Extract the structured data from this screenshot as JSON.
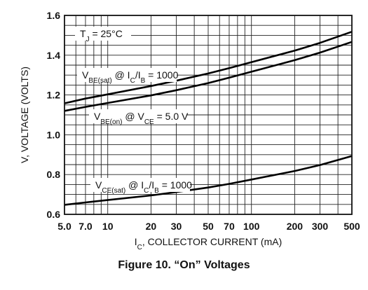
{
  "figure_caption": "Figure 10. “On” Voltages",
  "chart_data": {
    "type": "line",
    "x_scale": "log",
    "xlabel": {
      "main": "I",
      "sub": "C",
      "rest": ", COLLECTOR CURRENT (mA)"
    },
    "ylabel": "V, VOLTAGE (VOLTS)",
    "xlim": [
      5,
      500
    ],
    "ylim": [
      0.6,
      1.6
    ],
    "grid": true,
    "x_ticks": [
      {
        "value": 5,
        "label": "5.0"
      },
      {
        "value": 7,
        "label": "7.0"
      },
      {
        "value": 10,
        "label": "10"
      },
      {
        "value": 20,
        "label": "20"
      },
      {
        "value": 30,
        "label": "30"
      },
      {
        "value": 50,
        "label": "50"
      },
      {
        "value": 70,
        "label": "70"
      },
      {
        "value": 100,
        "label": "100"
      },
      {
        "value": 200,
        "label": "200"
      },
      {
        "value": 300,
        "label": "300"
      },
      {
        "value": 500,
        "label": "500"
      }
    ],
    "y_ticks": [
      {
        "value": 0.6,
        "label": "0.6"
      },
      {
        "value": 0.8,
        "label": "0.8"
      },
      {
        "value": 1.0,
        "label": "1.0"
      },
      {
        "value": 1.2,
        "label": "1.2"
      },
      {
        "value": 1.4,
        "label": "1.4"
      },
      {
        "value": 1.6,
        "label": "1.6"
      }
    ],
    "annotations": {
      "tj": {
        "main": "T",
        "sub": "J",
        "rest": " = 25°C"
      },
      "vbe_sat": {
        "parts": [
          [
            "V",
            ""
          ],
          [
            "BE(sat)",
            "sub"
          ],
          [
            " @ I",
            ""
          ],
          [
            "C",
            "sub"
          ],
          [
            "/I",
            ""
          ],
          [
            "B",
            "sub"
          ],
          [
            " = 1000",
            ""
          ]
        ]
      },
      "vbe_on": {
        "parts": [
          [
            "V",
            ""
          ],
          [
            "BE(on)",
            "sub"
          ],
          [
            " @ V",
            ""
          ],
          [
            "CE",
            "sub"
          ],
          [
            " = 5.0 V",
            ""
          ]
        ]
      },
      "vce_sat": {
        "parts": [
          [
            "V",
            ""
          ],
          [
            "CE(sat)",
            "sub"
          ],
          [
            " @ I",
            ""
          ],
          [
            "C",
            "sub"
          ],
          [
            "/I",
            ""
          ],
          [
            "B",
            "sub"
          ],
          [
            " = 1000",
            ""
          ]
        ]
      }
    },
    "series": [
      {
        "x": [
          5,
          7,
          10,
          20,
          30,
          50,
          70,
          100,
          200,
          300,
          500
        ],
        "y": [
          1.158,
          1.182,
          1.203,
          1.245,
          1.272,
          1.308,
          1.335,
          1.365,
          1.423,
          1.462,
          1.518
        ]
      },
      {
        "x": [
          5,
          7,
          10,
          20,
          30,
          50,
          70,
          100,
          200,
          300,
          500
        ],
        "y": [
          1.12,
          1.14,
          1.16,
          1.198,
          1.224,
          1.26,
          1.287,
          1.317,
          1.375,
          1.413,
          1.467
        ]
      },
      {
        "x": [
          5,
          7,
          10,
          20,
          30,
          50,
          70,
          100,
          200,
          300,
          500
        ],
        "y": [
          0.648,
          0.66,
          0.672,
          0.695,
          0.712,
          0.735,
          0.753,
          0.775,
          0.818,
          0.848,
          0.893
        ]
      }
    ]
  }
}
